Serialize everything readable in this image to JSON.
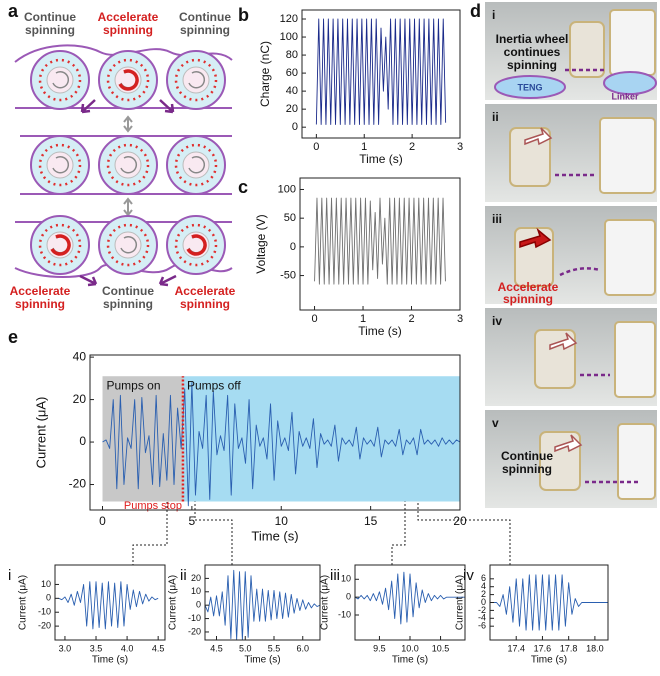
{
  "panel_labels": [
    "a",
    "d"
  ],
  "diagram": {
    "top_labels": [
      [
        "Continue",
        "spinning"
      ],
      [
        "Accelerate",
        "spinning"
      ],
      [
        "Continue",
        "spinning"
      ]
    ],
    "bottom_labels": [
      [
        "Accelerate",
        "spinning"
      ],
      [
        "Continue",
        "spinning"
      ],
      [
        "Accelerate",
        "spinning"
      ]
    ]
  },
  "photos": {
    "panels": [
      "i",
      "ii",
      "iii",
      "iv",
      "v"
    ],
    "notes": {
      "inertia": [
        "Inertia wheel",
        "continues",
        "spinning"
      ],
      "teng": "TENG",
      "linker": "Linker",
      "accelerate": [
        "Accelerate",
        "spinning"
      ],
      "continue": [
        "Continue",
        "spinning"
      ]
    }
  },
  "chart_data": [
    {
      "type": "line",
      "panel": "b",
      "x_label": "Time (s)",
      "y_label": "Charge (nC)",
      "color": "#1a2a8a",
      "xlim": [
        -0.3,
        3
      ],
      "ylim": [
        -12,
        130
      ],
      "xticks": [
        0,
        1,
        2,
        3
      ],
      "yticks": [
        0,
        20,
        40,
        60,
        80,
        100,
        120
      ],
      "x": [
        0,
        0.05,
        0.1,
        0.15,
        0.2,
        0.25,
        0.3,
        0.35,
        0.4,
        0.45,
        0.5,
        0.55,
        0.6,
        0.65,
        0.7,
        0.75,
        0.8,
        0.85,
        0.9,
        0.95,
        1,
        1.05,
        1.1,
        1.15,
        1.2,
        1.25,
        1.3,
        1.35,
        1.4,
        1.45,
        1.5,
        1.55,
        1.6,
        1.65,
        1.7,
        1.75,
        1.8,
        1.85,
        1.9,
        1.95,
        2,
        2.05,
        2.1,
        2.15,
        2.2,
        2.25,
        2.3,
        2.35,
        2.4,
        2.45,
        2.5,
        2.55,
        2.6,
        2.65,
        2.7
      ],
      "values": [
        3,
        120,
        3,
        120,
        3,
        120,
        3,
        120,
        3,
        120,
        3,
        120,
        3,
        120,
        3,
        120,
        3,
        120,
        3,
        120,
        3,
        120,
        3,
        120,
        3,
        120,
        3,
        110,
        40,
        100,
        20,
        120,
        3,
        120,
        3,
        120,
        3,
        120,
        3,
        120,
        3,
        120,
        3,
        120,
        3,
        120,
        3,
        120,
        3,
        120,
        3,
        120,
        3,
        120,
        5
      ]
    },
    {
      "type": "line",
      "panel": "c",
      "x_label": "Time (s)",
      "y_label": "Voltage (V)",
      "color": "#707070",
      "xlim": [
        -0.3,
        3
      ],
      "ylim": [
        -110,
        120
      ],
      "xticks": [
        0,
        1,
        2,
        3
      ],
      "yticks": [
        -50,
        0,
        50,
        100
      ],
      "x": [
        0,
        0.05,
        0.1,
        0.15,
        0.2,
        0.25,
        0.3,
        0.35,
        0.4,
        0.45,
        0.5,
        0.55,
        0.6,
        0.65,
        0.7,
        0.75,
        0.8,
        0.85,
        0.9,
        0.95,
        1,
        1.05,
        1.1,
        1.15,
        1.2,
        1.25,
        1.3,
        1.35,
        1.4,
        1.45,
        1.5,
        1.55,
        1.6,
        1.65,
        1.7,
        1.75,
        1.8,
        1.85,
        1.9,
        1.95,
        2,
        2.05,
        2.1,
        2.15,
        2.2,
        2.25,
        2.3,
        2.35,
        2.4,
        2.45,
        2.5,
        2.55,
        2.6,
        2.65,
        2.7
      ],
      "values": [
        -60,
        85,
        -65,
        85,
        -65,
        85,
        -65,
        85,
        -65,
        85,
        -65,
        85,
        -65,
        85,
        -65,
        85,
        -65,
        85,
        -65,
        85,
        -65,
        85,
        -65,
        80,
        -40,
        60,
        -55,
        85,
        -30,
        50,
        -65,
        85,
        -65,
        85,
        -65,
        85,
        -65,
        85,
        -65,
        85,
        -65,
        85,
        -65,
        85,
        -65,
        85,
        -65,
        85,
        -65,
        85,
        -65,
        85,
        -65,
        85,
        -60
      ]
    },
    {
      "type": "line",
      "panel": "e",
      "x_label": "Time (s)",
      "y_label": "Current (μA)",
      "color": "#2a5fb0",
      "xlim": [
        -0.7,
        20
      ],
      "ylim": [
        -32,
        41
      ],
      "xticks": [
        0,
        5,
        10,
        15,
        20
      ],
      "yticks": [
        -20,
        0,
        20,
        40
      ],
      "spans": [
        {
          "label": "Pumps on",
          "x": [
            0,
            4.5
          ],
          "y": [
            -28,
            31
          ],
          "color": "#c8c8c8"
        },
        {
          "label": "Pumps off",
          "x": [
            4.5,
            20
          ],
          "y": [
            -28,
            31
          ],
          "color": "#a6dcf2"
        }
      ],
      "marker": {
        "label": "Pumps stop",
        "x": 4.5,
        "color": "#e02020"
      },
      "x": [
        0,
        0.2,
        0.4,
        0.6,
        0.8,
        1,
        1.2,
        1.4,
        1.6,
        1.8,
        2,
        2.2,
        2.4,
        2.6,
        2.8,
        3,
        3.2,
        3.4,
        3.6,
        3.8,
        4,
        4.2,
        4.4,
        4.6,
        4.8,
        5,
        5.2,
        5.4,
        5.6,
        5.8,
        6,
        6.2,
        6.4,
        6.6,
        6.8,
        7,
        7.2,
        7.4,
        7.6,
        7.8,
        8,
        8.2,
        8.4,
        8.6,
        8.8,
        9,
        9.2,
        9.4,
        9.6,
        9.8,
        10,
        10.2,
        10.4,
        10.6,
        10.8,
        11,
        11.2,
        11.4,
        11.6,
        11.8,
        12,
        12.2,
        12.4,
        12.6,
        12.8,
        13,
        13.2,
        13.4,
        13.6,
        13.8,
        14,
        14.2,
        14.4,
        14.6,
        14.8,
        15,
        15.2,
        15.4,
        15.6,
        15.8,
        16,
        16.2,
        16.4,
        16.6,
        16.8,
        17,
        17.2,
        17.4,
        17.6,
        17.8,
        18,
        18.2,
        18.4,
        18.6,
        18.8,
        19,
        19.2,
        19.4,
        19.6,
        19.8,
        20
      ],
      "values": [
        0,
        1,
        -3,
        20,
        -22,
        22,
        -20,
        2,
        -3,
        20,
        -22,
        21,
        -5,
        3,
        -20,
        22,
        -21,
        4,
        -18,
        22,
        -20,
        16,
        -3,
        25,
        -30,
        28,
        -25,
        5,
        -3,
        22,
        -27,
        24,
        -6,
        3,
        -4,
        22,
        -25,
        18,
        -3,
        2,
        -10,
        20,
        -22,
        8,
        -2,
        2,
        -8,
        18,
        -18,
        10,
        -2,
        2,
        -4,
        14,
        -15,
        5,
        -2,
        2,
        -3,
        11,
        -12,
        4,
        -1,
        1,
        -2,
        8,
        -9,
        2,
        -1,
        1,
        -2,
        7,
        -8,
        2,
        -1,
        1,
        -2,
        7,
        -7,
        1,
        -1,
        1,
        -2,
        6,
        -6,
        1,
        -1,
        2,
        -6,
        6,
        -1,
        1,
        -1,
        1,
        -2,
        2,
        -1,
        1,
        -1,
        1,
        0
      ]
    },
    {
      "type": "line",
      "panel": "i",
      "x_label": "Time (s)",
      "y_label": "Current (μA)",
      "color": "#2a5fb0",
      "xlim": [
        2.84,
        4.61
      ],
      "ylim": [
        -30,
        24
      ],
      "xticks": [
        {
          "value": 3,
          "label": "3.0"
        },
        3.5,
        {
          "value": 4,
          "label": "4.0"
        },
        4.5
      ],
      "yticks": [
        -20,
        -10,
        0,
        10
      ],
      "x": [
        2.9,
        2.95,
        3,
        3.05,
        3.1,
        3.15,
        3.2,
        3.25,
        3.3,
        3.35,
        3.4,
        3.45,
        3.5,
        3.55,
        3.6,
        3.65,
        3.7,
        3.75,
        3.8,
        3.85,
        3.9,
        3.95,
        4,
        4.05,
        4.1,
        4.15,
        4.2,
        4.25,
        4.3,
        4.35,
        4.4,
        4.45,
        4.5
      ],
      "values": [
        0,
        -1,
        1,
        -3,
        3,
        -5,
        5,
        -3,
        10,
        -20,
        12,
        -22,
        12,
        -21,
        11,
        -22,
        12,
        -20,
        11,
        -21,
        12,
        -20,
        10,
        -8,
        6,
        -6,
        5,
        -4,
        3,
        -2,
        1,
        -1,
        0
      ]
    },
    {
      "type": "line",
      "panel": "ii",
      "x_label": "Time (s)",
      "y_label": "Current (μA)",
      "color": "#2a5fb0",
      "xlim": [
        4.3,
        6.3
      ],
      "ylim": [
        -26,
        30
      ],
      "xticks": [
        4.5,
        {
          "value": 5,
          "label": "5.0"
        },
        5.5,
        {
          "value": 6,
          "label": "6.0"
        }
      ],
      "yticks": [
        -20,
        -10,
        0,
        10,
        20
      ],
      "x": [
        4.3,
        4.35,
        4.4,
        4.45,
        4.5,
        4.55,
        4.6,
        4.65,
        4.7,
        4.75,
        4.8,
        4.85,
        4.9,
        4.95,
        5,
        5.05,
        5.1,
        5.15,
        5.2,
        5.25,
        5.3,
        5.35,
        5.4,
        5.45,
        5.5,
        5.55,
        5.6,
        5.65,
        5.7,
        5.75,
        5.8,
        5.85,
        5.9,
        5.95,
        6,
        6.05,
        6.1,
        6.15,
        6.2,
        6.25,
        6.3
      ],
      "values": [
        0,
        -5,
        6,
        -8,
        7,
        -8,
        10,
        -15,
        22,
        -25,
        26,
        -26,
        25,
        -26,
        25,
        -24,
        22,
        -12,
        12,
        -12,
        12,
        -12,
        11,
        -11,
        11,
        -10,
        10,
        -10,
        9,
        -9,
        8,
        -6,
        5,
        -4,
        4,
        -3,
        2,
        -2,
        1,
        -1,
        0
      ]
    },
    {
      "type": "line",
      "panel": "iii",
      "x_label": "Time (s)",
      "y_label": "Current (μA)",
      "color": "#2a5fb0",
      "xlim": [
        9.1,
        10.9
      ],
      "ylim": [
        -24,
        18
      ],
      "xticks": [
        9.5,
        {
          "value": 10,
          "label": "10.0"
        },
        10.5
      ],
      "yticks": [
        -10,
        0,
        10
      ],
      "x": [
        9.1,
        9.15,
        9.2,
        9.25,
        9.3,
        9.35,
        9.4,
        9.45,
        9.5,
        9.55,
        9.6,
        9.65,
        9.7,
        9.75,
        9.8,
        9.85,
        9.9,
        9.95,
        10,
        10.05,
        10.1,
        10.15,
        10.2,
        10.25,
        10.3,
        10.35,
        10.4,
        10.45,
        10.5,
        10.55,
        10.6,
        10.65,
        10.7,
        10.75,
        10.8,
        10.85,
        10.9
      ],
      "values": [
        0,
        -1,
        1,
        -1,
        1,
        -2,
        2,
        -2,
        3,
        -4,
        5,
        -7,
        9,
        -12,
        13,
        -15,
        14,
        -14,
        13,
        -11,
        8,
        -6,
        4,
        -3,
        2,
        -2,
        1,
        -1,
        1,
        -1,
        0,
        0,
        0,
        0,
        0,
        0,
        0
      ]
    },
    {
      "type": "line",
      "panel": "iv",
      "x_label": "Time (s)",
      "y_label": "Current (μA)",
      "color": "#2a5fb0",
      "xlim": [
        17.2,
        18.1
      ],
      "ylim": [
        -9.5,
        9.5
      ],
      "xticks": [
        17.4,
        17.6,
        17.8,
        {
          "value": 18,
          "label": "18.0"
        }
      ],
      "yticks": [
        -6,
        -4,
        -2,
        0,
        2,
        4,
        6
      ],
      "x": [
        17.2,
        17.225,
        17.25,
        17.275,
        17.3,
        17.325,
        17.35,
        17.375,
        17.4,
        17.425,
        17.45,
        17.475,
        17.5,
        17.525,
        17.55,
        17.575,
        17.6,
        17.625,
        17.65,
        17.675,
        17.7,
        17.725,
        17.75,
        17.775,
        17.8,
        17.825,
        17.85,
        17.875,
        17.9,
        17.925,
        17.95,
        17.975,
        18,
        18.025,
        18.05,
        18.075,
        18.1
      ],
      "values": [
        0,
        0,
        0,
        -1,
        2,
        -3,
        4,
        -5,
        6,
        -6,
        6,
        -7,
        7,
        -7,
        7,
        -7,
        7,
        -7,
        7,
        -7,
        7,
        -7,
        7,
        -6,
        5,
        -3,
        1,
        -1,
        0,
        0,
        0,
        0,
        0,
        0,
        0,
        0,
        0
      ]
    }
  ]
}
